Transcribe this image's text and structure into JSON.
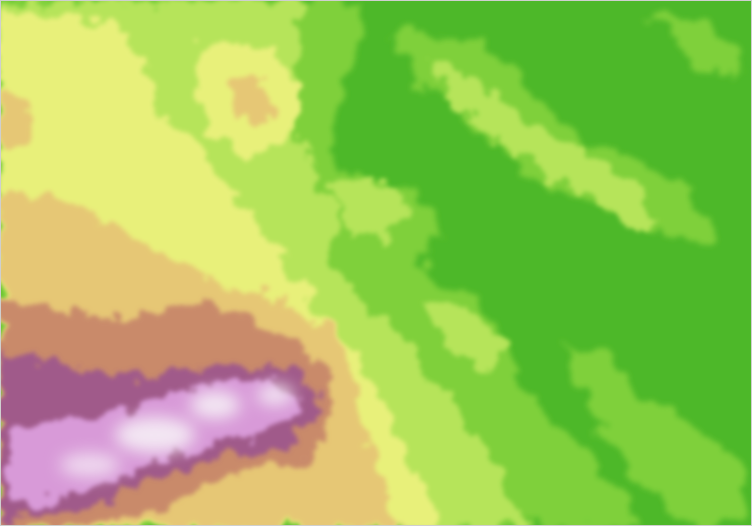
{
  "map": {
    "kind": "elevation-relief",
    "palette": {
      "lowland": "#4db829",
      "low_slope": "#7fd03a",
      "mid_slope": "#b6e45a",
      "plateau": "#e8f07a",
      "upland": "#e6c774",
      "high": "#c98a6a",
      "ridge": "#a05a8a",
      "peak": "#d89ad8",
      "summit": "#f3e6f3"
    },
    "labels_visible": false
  }
}
